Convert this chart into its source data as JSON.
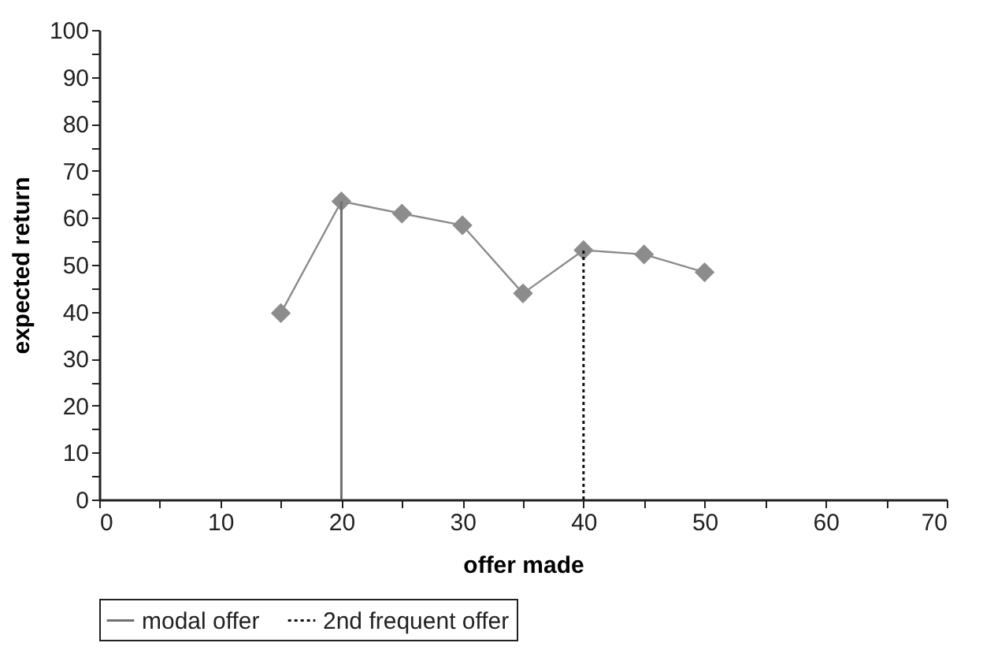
{
  "chart_data": {
    "type": "line",
    "xlabel": "offer made",
    "ylabel": "expected return",
    "xlim": [
      0,
      70
    ],
    "xticks": [
      0,
      {
        "value": 5,
        "label": null
      },
      10,
      {
        "value": 15,
        "label": null
      },
      20,
      {
        "value": 25,
        "label": null
      },
      30,
      {
        "value": 35,
        "label": null
      },
      40,
      {
        "value": 45,
        "label": null
      },
      50,
      {
        "value": 55,
        "label": null
      },
      60,
      {
        "value": 65,
        "label": null
      },
      70
    ],
    "ylim": [
      0,
      100
    ],
    "yticks": [
      0,
      {
        "value": 5,
        "label": null
      },
      10,
      {
        "value": 15,
        "label": null
      },
      20,
      {
        "value": 25,
        "label": null
      },
      30,
      {
        "value": 35,
        "label": null
      },
      40,
      {
        "value": 45,
        "label": null
      },
      50,
      {
        "value": 55,
        "label": null
      },
      60,
      {
        "value": 65,
        "label": null
      },
      70,
      {
        "value": 75,
        "label": null
      },
      80,
      {
        "value": 85,
        "label": null
      },
      90,
      {
        "value": 95,
        "label": null
      },
      100
    ],
    "grid": false,
    "legend": "bottom",
    "series": [
      {
        "color": "#8c8c8c",
        "x": [
          15,
          20,
          25,
          30,
          35,
          40,
          45,
          50
        ],
        "values": [
          39.7,
          63.5,
          60.9,
          58.4,
          43.9,
          53.1,
          52.2,
          48.4
        ],
        "marker": "diamond",
        "line_style": "solid"
      },
      {
        "name": "modal offer",
        "color": "#707070",
        "x": [
          20,
          20
        ],
        "values": [
          0,
          63.5
        ],
        "marker": "none",
        "line_style": "solid"
      },
      {
        "name": "2nd frequent offer",
        "color": "#111111",
        "x": [
          40,
          40
        ],
        "values": [
          0,
          53.1
        ],
        "marker": "none",
        "line_style": "dotted"
      }
    ]
  }
}
